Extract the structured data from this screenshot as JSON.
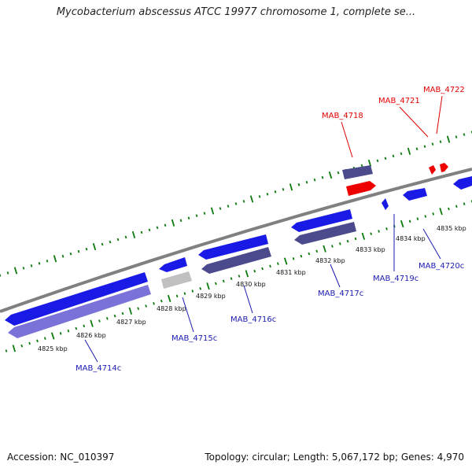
{
  "title": "Mycobacterium abscessus ATCC 19977 chromosome 1, complete se...",
  "footer": {
    "accession": "Accession: NC_010397",
    "summary": "Topology: circular; Length: 5,067,172 bp; Genes: 4,970"
  },
  "colors": {
    "ruler_ticks": "#0b7a0b",
    "backbone": "#808080",
    "forward_gene": "#0000ee",
    "selected_gene": "#ee0000",
    "cds_blue": "#1a1ae6",
    "cds_purple": "#4b4a8c",
    "cds_lavender": "#7b72d9",
    "cds_gray": "#c0c0c0",
    "label_blue": "#1b1bb0",
    "label_red": "#e00000"
  },
  "axis": {
    "unit": "kbp",
    "tick_labels": [
      "4825 kbp",
      "4826 kbp",
      "4827 kbp",
      "4828 kbp",
      "4829 kbp",
      "4830 kbp",
      "4831 kbp",
      "4832 kbp",
      "4833 kbp",
      "4834 kbp",
      "4835 kbp"
    ]
  },
  "genes": {
    "MAB_4714c": "MAB_4714c",
    "MAB_4715c": "MAB_4715c",
    "MAB_4716c": "MAB_4716c",
    "MAB_4717c": "MAB_4717c",
    "MAB_4718": "MAB_4718",
    "MAB_4719c": "MAB_4719c",
    "MAB_4720c": "MAB_4720c",
    "MAB_4721": "MAB_4721",
    "MAB_4722": "MAB_4722"
  }
}
